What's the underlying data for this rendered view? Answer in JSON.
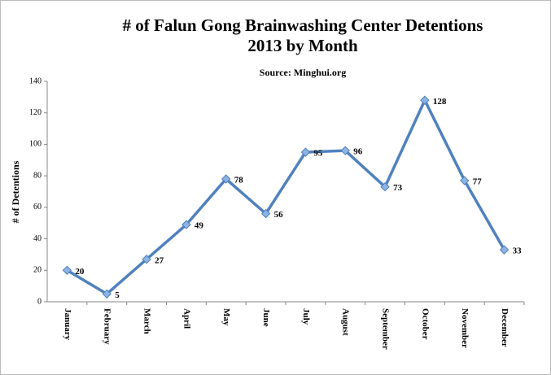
{
  "chart_data": {
    "type": "line",
    "title": [
      "# of Falun Gong Brainwashing Center Detentions",
      "2013 by Month"
    ],
    "subtitle": "Source: Minghui.org",
    "y_label": "# of Detentions",
    "categories": [
      "January",
      "February",
      "March",
      "April",
      "May",
      "June",
      "July",
      "August",
      "September",
      "October",
      "November",
      "December"
    ],
    "series": [
      {
        "name": "Detentions",
        "color": "#4f81bd",
        "values": [
          20,
          5,
          27,
          49,
          78,
          56,
          95,
          96,
          73,
          128,
          77,
          33
        ]
      }
    ],
    "ylim": [
      0,
      140
    ],
    "yticks": [
      0,
      20,
      40,
      60,
      80,
      100,
      120,
      140
    ],
    "grid": false
  }
}
